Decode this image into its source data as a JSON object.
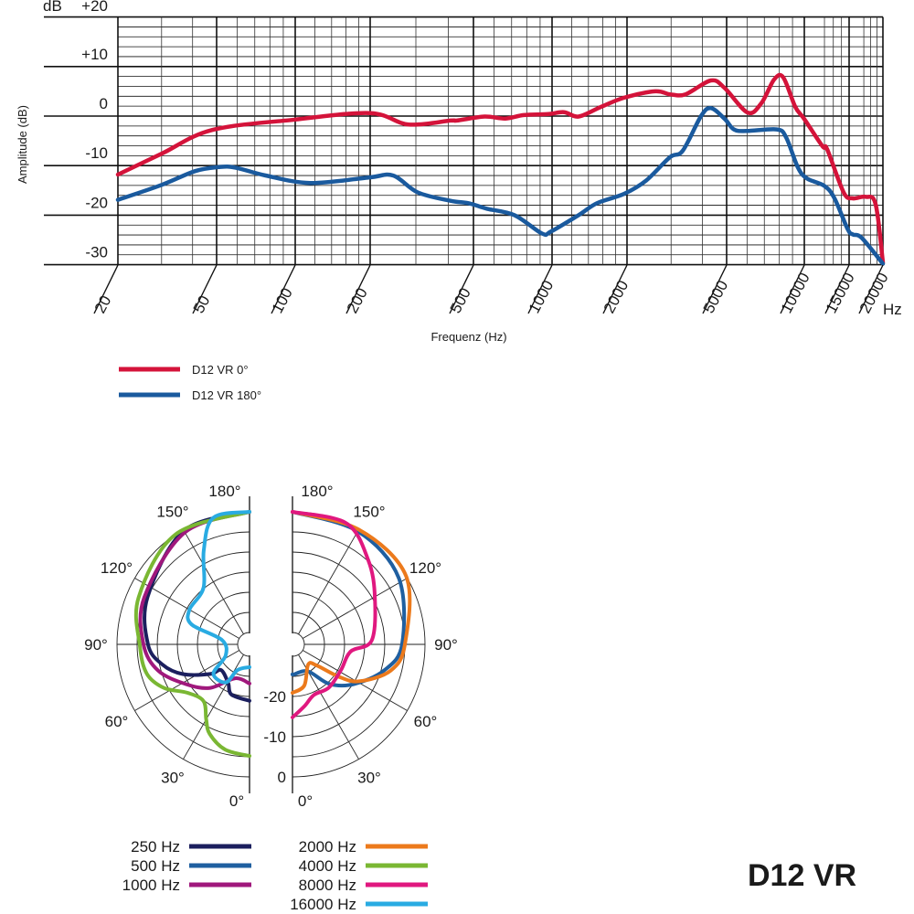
{
  "chart_data": [
    {
      "type": "line",
      "title": "",
      "xlabel": "Frequenz (Hz)",
      "ylabel": "Amplitude (dB)",
      "y_unit_label": "dB",
      "x_unit_label": "Hz",
      "x_scale": "log",
      "xlim": [
        20,
        20000
      ],
      "ylim": [
        -30,
        20
      ],
      "grid": true,
      "x_ticks": [
        20,
        50,
        100,
        200,
        500,
        1000,
        2000,
        5000,
        10000,
        15000,
        20000
      ],
      "x_tick_labels": [
        "20",
        "50",
        "100",
        "200",
        "500",
        "1000",
        "2000",
        "5000",
        "10000",
        "15000",
        "20000"
      ],
      "y_ticks": [
        20,
        10,
        0,
        -10,
        -20,
        -30
      ],
      "y_tick_labels": [
        "+20",
        "+10",
        "0",
        "-10",
        "-20",
        "-30"
      ],
      "legend_position": "bottom-left",
      "series": [
        {
          "name": "D12 VR 0°",
          "color": "#d4133a",
          "x": [
            20,
            30,
            48,
            100,
            200,
            281,
            408,
            432,
            551,
            663,
            779,
            968,
            1116,
            1278,
            1565,
            1949,
            2594,
            2968,
            3424,
            4334,
            4920,
            6030,
            6815,
            7640,
            8290,
            9216,
            10000,
            11800,
            12300,
            14270,
            15480,
            17250,
            18800,
            20000
          ],
          "y": [
            -11.8,
            -7.6,
            -2.8,
            -0.7,
            0.6,
            -1.7,
            -0.9,
            -0.9,
            -0.1,
            -0.5,
            0.2,
            0.4,
            0.8,
            -0.1,
            1.8,
            3.7,
            5.0,
            4.4,
            4.4,
            7.2,
            5.6,
            0.7,
            2.6,
            7.4,
            7.8,
            1.9,
            -0.6,
            -6.1,
            -6.7,
            -15.4,
            -16.6,
            -16.3,
            -17.8,
            -29.6
          ]
        },
        {
          "name": "D12 VR 180°",
          "color": "#1a5a9e",
          "x": [
            20,
            30,
            41,
            51,
            59,
            77,
            115,
            197,
            245,
            305,
            408,
            480,
            564,
            718,
            915,
            990,
            1278,
            1513,
            1949,
            2386,
            2968,
            3340,
            3952,
            4334,
            4920,
            5337,
            5985,
            7830,
            8500,
            9450,
            10250,
            12000,
            13140,
            14800,
            15480,
            16700,
            20000
          ],
          "y": [
            -16.9,
            -13.9,
            -11.1,
            -10.3,
            -10.4,
            -12.0,
            -13.5,
            -12.4,
            -12.0,
            -15.4,
            -17.1,
            -17.6,
            -18.7,
            -20.0,
            -23.7,
            -23.3,
            -20.0,
            -17.6,
            -15.7,
            -13.0,
            -8.3,
            -7.0,
            0.0,
            1.6,
            -0.6,
            -2.7,
            -3.0,
            -2.7,
            -4.3,
            -10.4,
            -12.6,
            -14.1,
            -16.6,
            -22.8,
            -23.9,
            -24.6,
            -29.8
          ]
        }
      ]
    },
    {
      "type": "polar",
      "title": "D12 VR",
      "angle_labels": [
        "180°",
        "150°",
        "120°",
        "90°",
        "60°",
        "30°",
        "0°"
      ],
      "angles": [
        180,
        150,
        120,
        90,
        60,
        30,
        0
      ],
      "radial_labels": [
        "-20",
        "-10",
        "0"
      ],
      "radial_values": [
        -20,
        -10,
        0
      ],
      "rlim": [
        -30,
        0
      ],
      "ring_step_db": 5,
      "series": [
        {
          "name": "250 Hz",
          "color": "#1b1f5e",
          "side": "left",
          "angle": [
            180,
            150,
            115,
            90,
            77,
            66,
            53,
            48,
            29,
            20,
            0
          ],
          "db": [
            0,
            -0.3,
            -5,
            -7.7,
            -10.7,
            -14.8,
            -20.7,
            -23.4,
            -22,
            -19.7,
            -18.9
          ]
        },
        {
          "name": "500 Hz",
          "color": "#1f5fa0",
          "side": "right",
          "angle": [
            180,
            150,
            122,
            90,
            74,
            57,
            43,
            30,
            3,
            0
          ],
          "db": [
            0,
            -0.5,
            -1.8,
            -5.7,
            -9.3,
            -14.8,
            -19.5,
            -25.2,
            -25.5,
            -25.5
          ]
        },
        {
          "name": "1000 Hz",
          "color": "#a0187c",
          "side": "left",
          "angle": [
            180,
            150,
            114,
            90,
            74,
            58,
            42,
            23,
            0
          ],
          "db": [
            0,
            -0.8,
            -4.3,
            -6.6,
            -9.3,
            -14.3,
            -18.4,
            -23.8,
            -23.2
          ]
        },
        {
          "name": "2000 Hz",
          "color": "#ec7a1c",
          "side": "right",
          "angle": [
            180,
            150,
            121,
            90,
            75,
            61,
            55,
            49,
            38,
            16,
            0
          ],
          "db": [
            0,
            0,
            0,
            -5,
            -7.7,
            -14,
            -19,
            -25,
            -26.6,
            -22.3,
            -20.9
          ]
        },
        {
          "name": "4000 Hz",
          "color": "#7ab733",
          "side": "left",
          "angle": [
            180,
            146,
            113,
            89,
            74,
            63,
            52,
            39,
            30,
            24,
            13,
            0
          ],
          "db": [
            0,
            0,
            -3,
            -5.7,
            -6.4,
            -9.1,
            -13.4,
            -14.8,
            -11.4,
            -8.6,
            -6.1,
            -5.2
          ]
        },
        {
          "name": "8000 Hz",
          "color": "#e0187f",
          "side": "right",
          "angle": [
            180,
            156,
            138,
            120,
            93,
            83,
            62,
            40,
            23,
            11,
            0
          ],
          "db": [
            0,
            0,
            -4.8,
            -9.3,
            -13.2,
            -18.4,
            -19.3,
            -18.9,
            -19.3,
            -17.3,
            -14.8
          ]
        },
        {
          "name": "16000 Hz",
          "color": "#29abe2",
          "side": "left",
          "angle": [
            180,
            164,
            154,
            141,
            120,
            109,
            99,
            65,
            51,
            32,
            25,
            0
          ],
          "db": [
            0,
            -0.2,
            -7,
            -14.8,
            -15.7,
            -17.7,
            -26,
            -26.4,
            -21.4,
            -21.8,
            -25.9,
            -27.3
          ]
        }
      ]
    }
  ],
  "legend_frequency": [
    {
      "label": "D12 VR 0°",
      "color": "#d4133a"
    },
    {
      "label": "D12 VR 180°",
      "color": "#1a5a9e"
    }
  ],
  "legend_polar_left": [
    {
      "label": "250 Hz",
      "color": "#1b1f5e"
    },
    {
      "label": "500 Hz",
      "color": "#1f5fa0"
    },
    {
      "label": "1000 Hz",
      "color": "#a0187c"
    }
  ],
  "legend_polar_right": [
    {
      "label": "2000 Hz",
      "color": "#ec7a1c"
    },
    {
      "label": "4000 Hz",
      "color": "#7ab733"
    },
    {
      "label": "8000 Hz",
      "color": "#e0187f"
    },
    {
      "label": "16000 Hz",
      "color": "#29abe2"
    }
  ],
  "model_name": "D12 VR"
}
